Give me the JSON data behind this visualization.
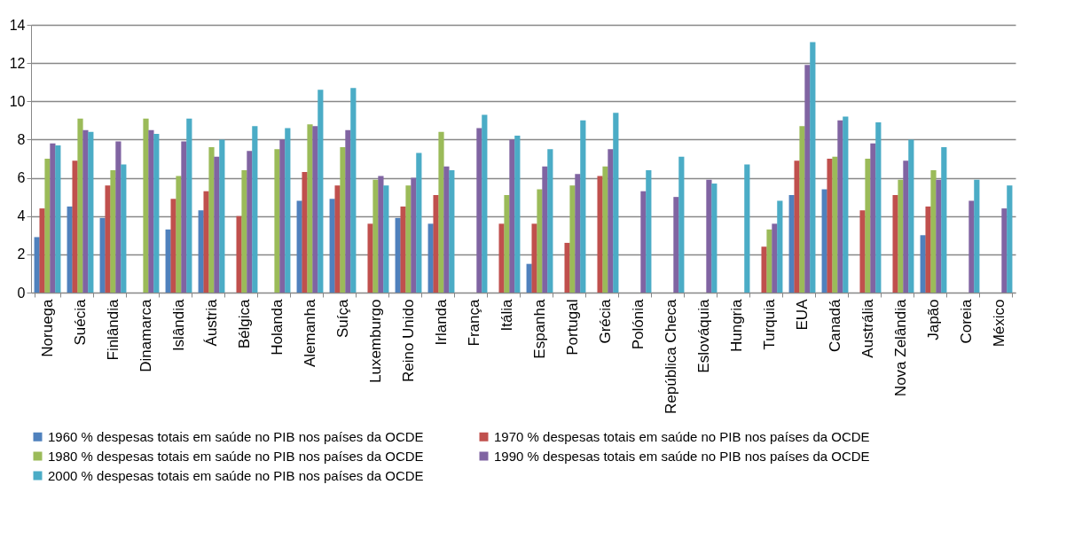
{
  "chart_data": {
    "type": "bar",
    "categories": [
      "Noruega",
      "Suécia",
      "Finlândia",
      "Dinamarca",
      "Islândia",
      "Áustria",
      "Bélgica",
      "Holanda",
      "Alemanha",
      "Suíça",
      "Luxemburgo",
      "Reino Unido",
      "Irlanda",
      "França",
      "Itália",
      "Espanha",
      "Portugal",
      "Grécia",
      "Polónia",
      "República Checa",
      "Eslováquia",
      "Hungria",
      "Turquia",
      "EUA",
      "Canadá",
      "Austrália",
      "Nova Zelândia",
      "Japão",
      "Coreia",
      "México"
    ],
    "series": [
      {
        "name": "1960 % despesas totais em saúde no PIB nos países da OCDE",
        "color": "#4f81bd",
        "values": [
          2.9,
          4.5,
          3.9,
          null,
          3.3,
          4.3,
          null,
          null,
          4.8,
          4.9,
          null,
          3.9,
          3.6,
          null,
          null,
          1.5,
          null,
          null,
          null,
          null,
          null,
          null,
          null,
          5.1,
          5.4,
          null,
          null,
          3.0,
          null,
          null
        ]
      },
      {
        "name": "1970 % despesas totais em saúde no PIB nos países da OCDE",
        "color": "#c0504d",
        "values": [
          4.4,
          6.9,
          5.6,
          null,
          4.9,
          5.3,
          4.0,
          null,
          6.3,
          5.6,
          3.6,
          4.5,
          5.1,
          null,
          3.6,
          3.6,
          2.6,
          6.1,
          null,
          null,
          null,
          null,
          2.4,
          6.9,
          7.0,
          4.3,
          5.1,
          4.5,
          null,
          null
        ]
      },
      {
        "name": "1980 % despesas totais em saúde no PIB nos países da OCDE",
        "color": "#9bbb59",
        "values": [
          7.0,
          9.1,
          6.4,
          9.1,
          6.1,
          7.6,
          6.4,
          7.5,
          8.8,
          7.6,
          5.9,
          5.6,
          8.4,
          null,
          5.1,
          5.4,
          5.6,
          6.6,
          null,
          null,
          null,
          null,
          3.3,
          8.7,
          7.1,
          7.0,
          5.9,
          6.4,
          null,
          null
        ]
      },
      {
        "name": "1990 % despesas totais em saúde no PIB nos países da OCDE",
        "color": "#8064a2",
        "values": [
          7.8,
          8.5,
          7.9,
          8.5,
          7.9,
          7.1,
          7.4,
          8.0,
          8.7,
          8.5,
          6.1,
          6.0,
          6.6,
          8.6,
          8.0,
          6.6,
          6.2,
          7.5,
          5.3,
          5.0,
          5.9,
          null,
          3.6,
          11.9,
          9.0,
          7.8,
          6.9,
          5.9,
          4.8,
          4.4
        ]
      },
      {
        "name": "2000 % despesas totais em saúde no PIB nos países da OCDE",
        "color": "#4bacc6",
        "values": [
          7.7,
          8.4,
          6.7,
          8.3,
          9.1,
          8.0,
          8.7,
          8.6,
          10.6,
          10.7,
          5.6,
          7.3,
          6.4,
          9.3,
          8.2,
          7.5,
          9.0,
          9.4,
          6.4,
          7.1,
          5.7,
          6.7,
          4.8,
          13.1,
          9.2,
          8.9,
          8.0,
          7.6,
          5.9,
          5.6
        ]
      }
    ],
    "ylim": [
      0,
      14
    ],
    "yticks": [
      0,
      2,
      4,
      6,
      8,
      10,
      12,
      14
    ],
    "grid": "y",
    "legend": "bottom"
  }
}
